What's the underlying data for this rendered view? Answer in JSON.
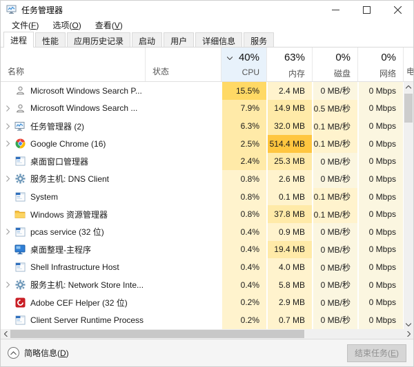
{
  "window": {
    "title": "任务管理器"
  },
  "menu": {
    "items": [
      {
        "label": "文件",
        "key": "F"
      },
      {
        "label": "选项",
        "key": "O"
      },
      {
        "label": "查看",
        "key": "V"
      }
    ]
  },
  "tabs": [
    {
      "label": "进程",
      "active": true
    },
    {
      "label": "性能",
      "active": false
    },
    {
      "label": "应用历史记录",
      "active": false
    },
    {
      "label": "启动",
      "active": false
    },
    {
      "label": "用户",
      "active": false
    },
    {
      "label": "详细信息",
      "active": false
    },
    {
      "label": "服务",
      "active": false
    }
  ],
  "columns": {
    "name": "名称",
    "status": "状态",
    "stats": [
      {
        "pct": "40%",
        "label": "CPU",
        "sorted": true
      },
      {
        "pct": "63%",
        "label": "内存",
        "sorted": false
      },
      {
        "pct": "0%",
        "label": "磁盘",
        "sorted": false
      },
      {
        "pct": "0%",
        "label": "网络",
        "sorted": false
      }
    ],
    "partial_next": "电"
  },
  "heat_colors": {
    "0": "#fbf6e0",
    "1": "#fff3cd",
    "2": "#ffeaa8",
    "3": "#ffd965",
    "4": "#ffc640"
  },
  "sorted_header_bg": "#e8f2fb",
  "rows": [
    {
      "name": "Microsoft Windows Search P...",
      "icon": "user-icon",
      "expandable": false,
      "status": "",
      "values": [
        "15.5%",
        "2.4 MB",
        "0 MB/秒",
        "0 Mbps"
      ],
      "heat": [
        3,
        1,
        0,
        0
      ]
    },
    {
      "name": "Microsoft Windows Search ...",
      "icon": "user-icon",
      "expandable": true,
      "status": "",
      "values": [
        "7.9%",
        "14.9 MB",
        "0.5 MB/秒",
        "0 Mbps"
      ],
      "heat": [
        2,
        2,
        1,
        0
      ]
    },
    {
      "name": "任务管理器 (2)",
      "icon": "taskmgr-icon",
      "expandable": true,
      "status": "",
      "values": [
        "6.3%",
        "32.0 MB",
        "0.1 MB/秒",
        "0 Mbps"
      ],
      "heat": [
        2,
        2,
        1,
        0
      ]
    },
    {
      "name": "Google Chrome (16)",
      "icon": "chrome-icon",
      "expandable": true,
      "status": "",
      "values": [
        "2.5%",
        "514.4 MB",
        "0.1 MB/秒",
        "0 Mbps"
      ],
      "heat": [
        2,
        4,
        1,
        0
      ]
    },
    {
      "name": "桌面窗口管理器",
      "icon": "window-icon",
      "expandable": false,
      "status": "",
      "values": [
        "2.4%",
        "25.3 MB",
        "0 MB/秒",
        "0 Mbps"
      ],
      "heat": [
        2,
        2,
        0,
        0
      ]
    },
    {
      "name": "服务主机: DNS Client",
      "icon": "gear-icon",
      "expandable": true,
      "status": "",
      "values": [
        "0.8%",
        "2.6 MB",
        "0 MB/秒",
        "0 Mbps"
      ],
      "heat": [
        1,
        1,
        0,
        0
      ]
    },
    {
      "name": "System",
      "icon": "window-icon",
      "expandable": false,
      "status": "",
      "values": [
        "0.8%",
        "0.1 MB",
        "0.1 MB/秒",
        "0 Mbps"
      ],
      "heat": [
        1,
        1,
        1,
        0
      ]
    },
    {
      "name": "Windows 资源管理器",
      "icon": "folder-icon",
      "expandable": false,
      "status": "",
      "values": [
        "0.8%",
        "37.8 MB",
        "0.1 MB/秒",
        "0 Mbps"
      ],
      "heat": [
        1,
        2,
        1,
        0
      ]
    },
    {
      "name": "pcas service (32 位)",
      "icon": "window-icon",
      "expandable": true,
      "status": "",
      "values": [
        "0.4%",
        "0.9 MB",
        "0 MB/秒",
        "0 Mbps"
      ],
      "heat": [
        1,
        1,
        0,
        0
      ]
    },
    {
      "name": "桌面整理-主程序",
      "icon": "monitor-icon",
      "expandable": false,
      "status": "",
      "values": [
        "0.4%",
        "19.4 MB",
        "0 MB/秒",
        "0 Mbps"
      ],
      "heat": [
        1,
        2,
        0,
        0
      ]
    },
    {
      "name": "Shell Infrastructure Host",
      "icon": "window-icon",
      "expandable": false,
      "status": "",
      "values": [
        "0.4%",
        "4.0 MB",
        "0 MB/秒",
        "0 Mbps"
      ],
      "heat": [
        1,
        1,
        0,
        0
      ]
    },
    {
      "name": "服务主机: Network Store Inte...",
      "icon": "gear-icon",
      "expandable": true,
      "status": "",
      "values": [
        "0.4%",
        "5.8 MB",
        "0 MB/秒",
        "0 Mbps"
      ],
      "heat": [
        1,
        1,
        0,
        0
      ]
    },
    {
      "name": "Adobe CEF Helper (32 位)",
      "icon": "adobe-icon",
      "expandable": false,
      "status": "",
      "values": [
        "0.2%",
        "2.9 MB",
        "0 MB/秒",
        "0 Mbps"
      ],
      "heat": [
        1,
        1,
        0,
        0
      ]
    },
    {
      "name": "Client Server Runtime Process",
      "icon": "window-icon",
      "expandable": false,
      "status": "",
      "values": [
        "0.2%",
        "0.7 MB",
        "0 MB/秒",
        "0 Mbps"
      ],
      "heat": [
        1,
        1,
        0,
        0
      ]
    }
  ],
  "footer": {
    "details_label": "简略信息",
    "details_key": "D",
    "end_task_label": "结束任务",
    "end_task_key": "E"
  }
}
